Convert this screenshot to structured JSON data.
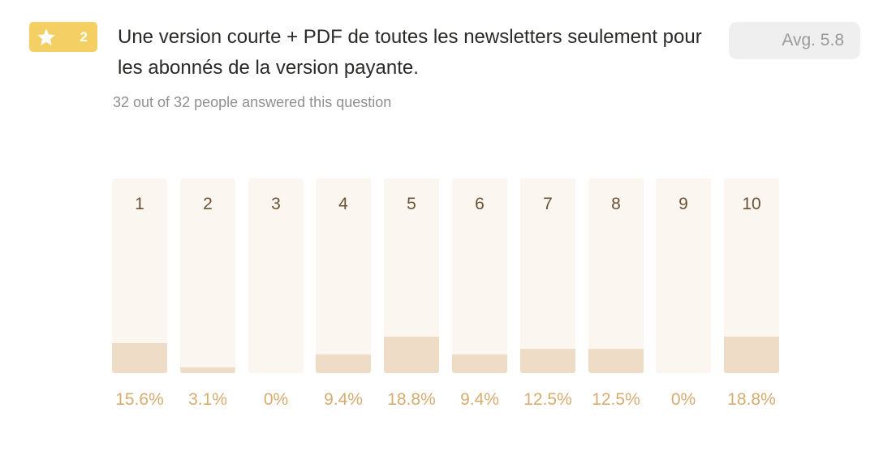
{
  "badge": {
    "icon": "star-icon",
    "number": "2",
    "color": "#f4cf63"
  },
  "question": {
    "title": "Une version courte + PDF de toutes les newsletters seulement pour les abonnés de la version payante.",
    "answered": "32 out of 32 people answered this question"
  },
  "average": {
    "label": "Avg. 5.8"
  },
  "chart_data": {
    "type": "bar",
    "categories": [
      "1",
      "2",
      "3",
      "4",
      "5",
      "6",
      "7",
      "8",
      "9",
      "10"
    ],
    "values": [
      15.6,
      3.1,
      0,
      9.4,
      18.8,
      9.4,
      12.5,
      12.5,
      0,
      18.8
    ],
    "value_labels": [
      "15.6%",
      "3.1%",
      "0%",
      "9.4%",
      "18.8%",
      "9.4%",
      "12.5%",
      "12.5%",
      "0%",
      "18.8%"
    ],
    "ylim": [
      0,
      100
    ],
    "grid": false,
    "colors": {
      "track": "#fbf6f0",
      "fill": "#efdcc6",
      "category_text": "#6b5237",
      "value_text": "#d6ac70"
    }
  }
}
